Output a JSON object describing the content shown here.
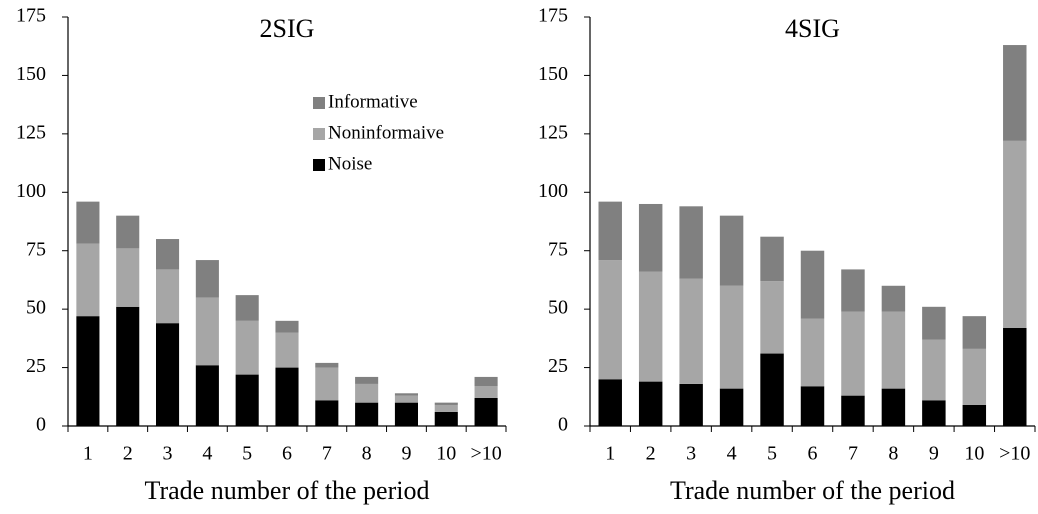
{
  "chart_data": [
    {
      "type": "bar",
      "stacked": true,
      "title": "2SIG",
      "xlabel": "Trade  number of the period",
      "categories": [
        "1",
        "2",
        "3",
        "4",
        "5",
        "6",
        "7",
        "8",
        "9",
        "10",
        ">10"
      ],
      "series": [
        {
          "name": "Noise",
          "color": "#000000",
          "values": [
            47,
            51,
            44,
            26,
            22,
            25,
            11,
            10,
            10,
            6,
            12
          ]
        },
        {
          "name": "Noninformaive",
          "color": "#a6a6a6",
          "values": [
            31,
            25,
            23,
            29,
            23,
            15,
            14,
            8,
            3,
            3,
            5
          ]
        },
        {
          "name": "Informative",
          "color": "#808080",
          "values": [
            18,
            14,
            13,
            16,
            11,
            5,
            2,
            3,
            1,
            1,
            4
          ]
        }
      ],
      "ylim": [
        0,
        175
      ],
      "yticks": [
        0,
        25,
        50,
        75,
        100,
        125,
        150,
        175
      ],
      "legend": "upper right"
    },
    {
      "type": "bar",
      "stacked": true,
      "title": "4SIG",
      "xlabel": "Trade  number of the period",
      "categories": [
        "1",
        "2",
        "3",
        "4",
        "5",
        "6",
        "7",
        "8",
        "9",
        "10",
        ">10"
      ],
      "series": [
        {
          "color": "#000000",
          "values": [
            20,
            19,
            18,
            16,
            31,
            17,
            13,
            16,
            11,
            9,
            42
          ]
        },
        {
          "color": "#a6a6a6",
          "values": [
            51,
            47,
            45,
            44,
            31,
            29,
            36,
            33,
            26,
            24,
            80
          ]
        },
        {
          "color": "#808080",
          "values": [
            25,
            29,
            31,
            30,
            19,
            29,
            18,
            11,
            14,
            14,
            41
          ]
        }
      ],
      "ylim": [
        0,
        175
      ],
      "yticks": [
        0,
        25,
        50,
        75,
        100,
        125,
        150,
        175
      ]
    }
  ]
}
